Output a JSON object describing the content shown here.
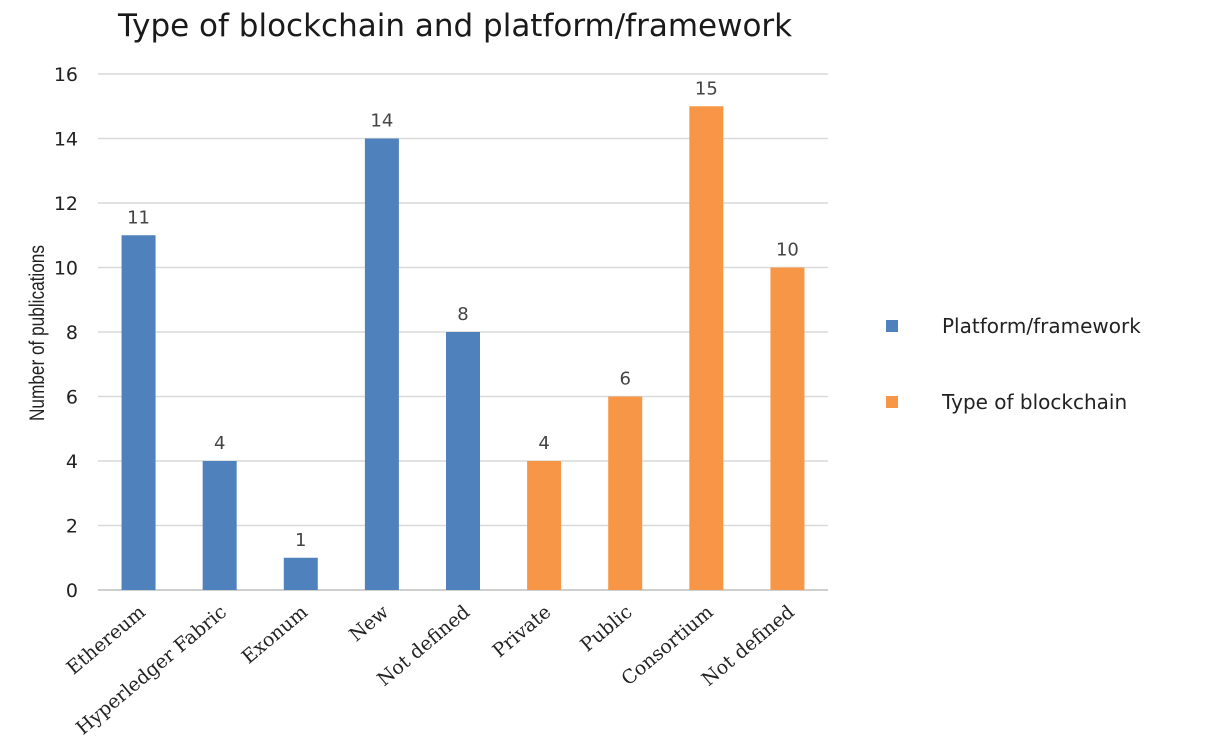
{
  "chart_data": {
    "type": "bar",
    "title": "Type of blockchain and platform/framework",
    "ylabel": "Number of publications",
    "xlabel": "",
    "ylim": [
      0,
      16
    ],
    "yticks": [
      0,
      2,
      4,
      6,
      8,
      10,
      12,
      14,
      16
    ],
    "grid": true,
    "legend_position": "right",
    "categories": [
      "Ethereum",
      "Hyperledger Fabric",
      "Exonum",
      "New",
      "Not defined",
      "Private",
      "Public",
      "Consortium",
      "Not defined"
    ],
    "series": [
      {
        "name": "Platform/framework",
        "color": "#4f81bd",
        "values": [
          11,
          4,
          1,
          14,
          8,
          null,
          null,
          null,
          null
        ]
      },
      {
        "name": "Type of blockchain",
        "color": "#f79646",
        "values": [
          null,
          null,
          null,
          null,
          null,
          4,
          6,
          15,
          10
        ]
      }
    ]
  }
}
